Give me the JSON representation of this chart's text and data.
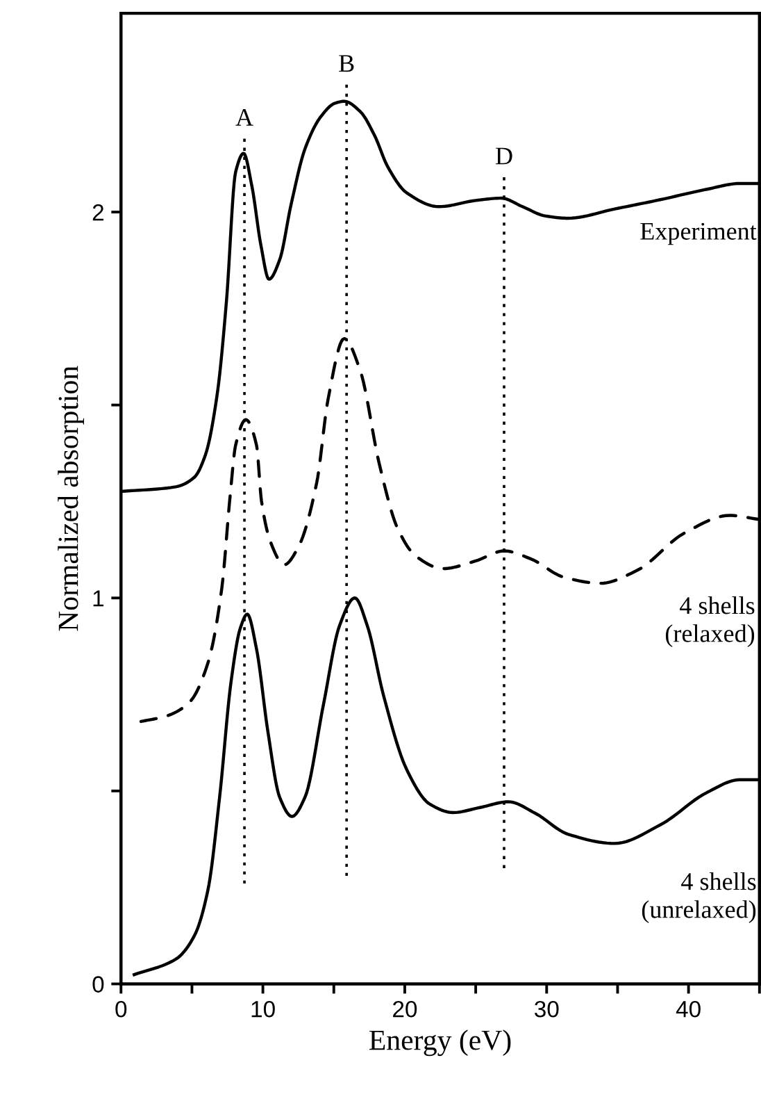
{
  "chart_data": {
    "type": "line",
    "xlabel": "Energy (eV)",
    "ylabel": "Normalized absorption",
    "xlim": [
      0,
      45
    ],
    "ylim": [
      0,
      2.515
    ],
    "xticks": [
      0,
      {
        "value": 5,
        "label": null
      },
      10,
      {
        "value": 15,
        "label": null
      },
      20,
      {
        "value": 25,
        "label": null
      },
      30,
      {
        "value": 35,
        "label": null
      },
      40,
      {
        "value": 45,
        "label": null
      }
    ],
    "yticks": [
      0,
      {
        "value": 0.5,
        "label": null
      },
      1,
      {
        "value": 1.5,
        "label": null
      },
      2
    ],
    "grid": false,
    "legend": false,
    "marker": "none",
    "series": [
      {
        "name": "Experiment",
        "color": "#000000",
        "line_style": "solid",
        "x": [
          0,
          3.85,
          5.15,
          5.96,
          6.78,
          7.43,
          8.08,
          8.64,
          9.22,
          9.87,
          10.43,
          11.18,
          11.99,
          12.97,
          14.1,
          15.08,
          15.73,
          16.87,
          17.85,
          18.82,
          20.13,
          22.4,
          25.0,
          26.8,
          28.3,
          29.9,
          31.5,
          34.8,
          38.0,
          41.3,
          43.6,
          45.0
        ],
        "values": [
          1.276,
          1.288,
          1.312,
          1.372,
          1.528,
          1.768,
          2.104,
          2.152,
          2.068,
          1.912,
          1.826,
          1.876,
          2.02,
          2.164,
          2.248,
          2.282,
          2.287,
          2.26,
          2.2,
          2.116,
          2.05,
          2.014,
          2.03,
          2.036,
          2.014,
          1.99,
          1.984,
          2.008,
          2.032,
          2.059,
          2.074,
          2.074
        ]
      },
      {
        "name": "4 shells\n(relaxed)",
        "color": "#000000",
        "line_style": "dashed",
        "x": [
          1.41,
          3.2,
          4.83,
          6.13,
          7.1,
          7.69,
          8.08,
          8.8,
          9.55,
          9.9,
          10.55,
          11.5,
          12.5,
          13.8,
          14.6,
          15.73,
          16.87,
          18.2,
          19.5,
          20.8,
          22.7,
          25.0,
          27.0,
          28.9,
          31.2,
          33.8,
          36.4,
          39.7,
          42.9,
          44.9
        ],
        "values": [
          0.68,
          0.694,
          0.73,
          0.832,
          1.024,
          1.264,
          1.396,
          1.462,
          1.396,
          1.252,
          1.144,
          1.086,
          1.132,
          1.3,
          1.516,
          1.672,
          1.588,
          1.348,
          1.18,
          1.108,
          1.076,
          1.096,
          1.122,
          1.101,
          1.054,
          1.038,
          1.072,
          1.168,
          1.214,
          1.204
        ]
      },
      {
        "name": "4 shells\n(unrelaxed)",
        "color": "#000000",
        "line_style": "solid",
        "x": [
          0.93,
          3.86,
          5.16,
          6.13,
          6.95,
          7.76,
          8.41,
          8.9,
          9.55,
          10.36,
          11.18,
          12.05,
          12.97,
          14.27,
          15.4,
          16.48,
          17.36,
          18.5,
          20.13,
          21.76,
          23.4,
          25.3,
          27.3,
          29.2,
          31.5,
          34.8,
          38.0,
          41.3,
          43.6,
          45.0
        ],
        "values": [
          0.024,
          0.064,
          0.124,
          0.244,
          0.484,
          0.784,
          0.922,
          0.958,
          0.868,
          0.652,
          0.484,
          0.434,
          0.484,
          0.724,
          0.928,
          1.0,
          0.928,
          0.748,
          0.556,
          0.466,
          0.444,
          0.457,
          0.472,
          0.442,
          0.388,
          0.364,
          0.412,
          0.496,
          0.529,
          0.529
        ]
      },
      {
        "color": "#000000",
        "line_style": "dotted",
        "x": [
          8.7,
          8.7
        ],
        "values": [
          0.26,
          2.19
        ]
      },
      {
        "color": "#000000",
        "line_style": "dotted",
        "x": [
          15.9,
          15.9
        ],
        "values": [
          0.28,
          2.33
        ]
      },
      {
        "color": "#000000",
        "line_style": "dotted",
        "x": [
          27.0,
          27.0
        ],
        "values": [
          0.3,
          2.09
        ]
      }
    ],
    "annotations": [
      {
        "text": "A",
        "x": 8.7,
        "y": 2.19
      },
      {
        "text": "B",
        "x": 15.9,
        "y": 2.33
      },
      {
        "text": "D",
        "x": 27.0,
        "y": 2.09
      }
    ]
  }
}
